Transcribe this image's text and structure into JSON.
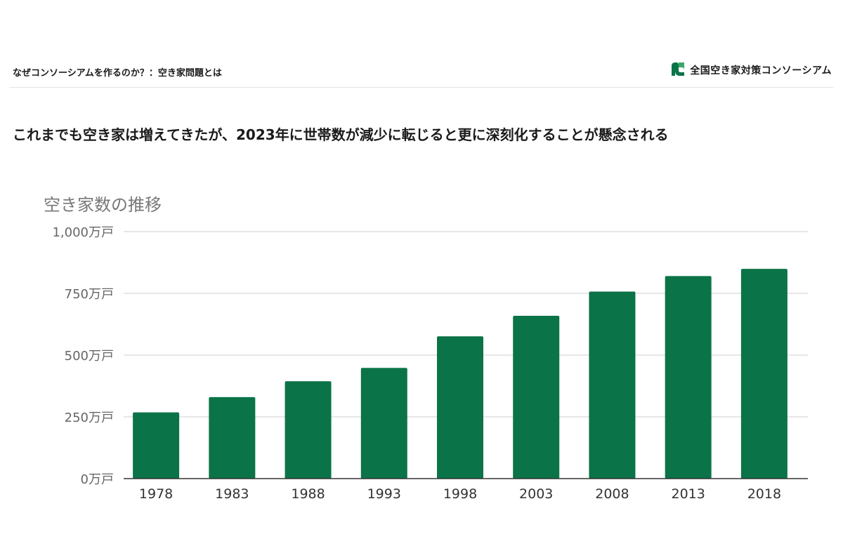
{
  "header": {
    "left_title": "なぜコンソーシアムを作るのか？：空き家問題とは",
    "brand_name": "全国空き家対策コンソーシアム",
    "brand_icon": "consortium-logo-icon",
    "brand_color": "#0b7348"
  },
  "headline": "これまでも空き家は増えてきたが、2023年に世帯数が減少に転じると更に深刻化することが懸念される",
  "chart_data": {
    "type": "bar",
    "title": "空き家数の推移",
    "xlabel": "",
    "ylabel": "",
    "categories": [
      "1978",
      "1983",
      "1988",
      "1993",
      "1998",
      "2003",
      "2008",
      "2013",
      "2018"
    ],
    "values": [
      268,
      330,
      394,
      448,
      576,
      659,
      757,
      820,
      849
    ],
    "ylim": [
      0,
      1000
    ],
    "yticks": [
      0,
      250,
      500,
      750,
      1000
    ],
    "ytick_labels": [
      "0万戸",
      "250万戸",
      "500万戸",
      "750万戸",
      "1,000万戸"
    ],
    "bar_color": "#0b7348",
    "grid": true,
    "legend": "none"
  }
}
